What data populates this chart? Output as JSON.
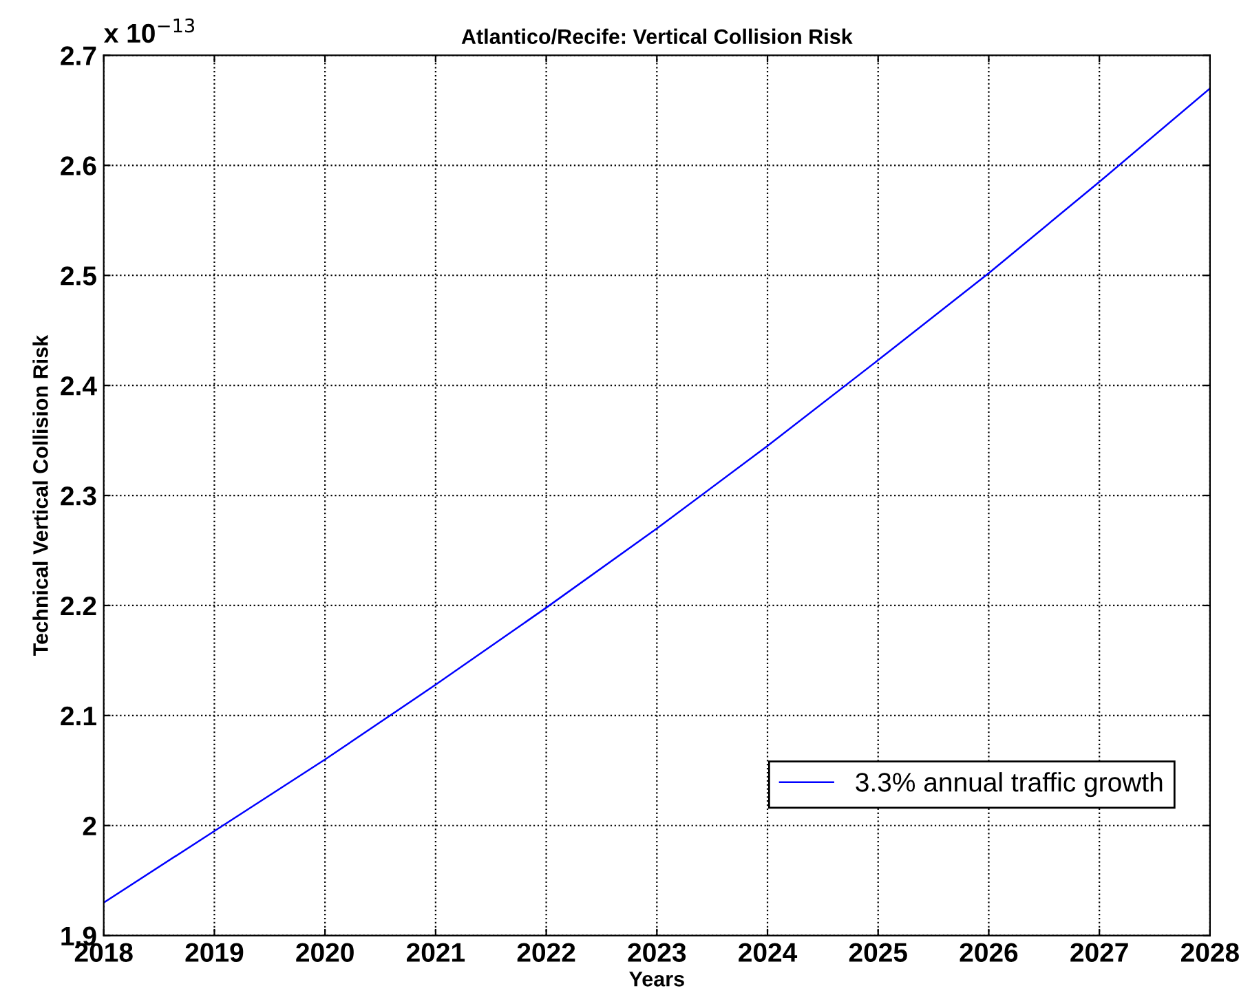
{
  "chart_data": {
    "type": "line",
    "title": "Atlantico/Recife: Vertical Collision Risk",
    "xlabel": "Years",
    "ylabel": "Technical Vertical Collision Risk",
    "annotations": [
      "x 10$^{−13}$"
    ],
    "x": [
      2018,
      2019,
      2020,
      2021,
      2022,
      2023,
      2024,
      2025,
      2026,
      2027,
      2028
    ],
    "series": [
      {
        "name": "3.3% annual traffic growth",
        "color": "#0000ff",
        "values": [
          1.93,
          1.995,
          2.06,
          2.128,
          2.198,
          2.27,
          2.345,
          2.423,
          2.502,
          2.585,
          2.67
        ]
      }
    ],
    "xlim": [
      2018,
      2028
    ],
    "xticks": [
      2018,
      2019,
      2020,
      2021,
      2022,
      2023,
      2024,
      2025,
      2026,
      2027,
      2028
    ],
    "ylim": [
      1.9,
      2.7
    ],
    "yticks": [
      1.9,
      2,
      2.1,
      2.2,
      2.3,
      2.4,
      2.5,
      2.6,
      2.7
    ],
    "grid": true,
    "legend": "bottom right",
    "marker": "none",
    "line_style": "solid"
  }
}
